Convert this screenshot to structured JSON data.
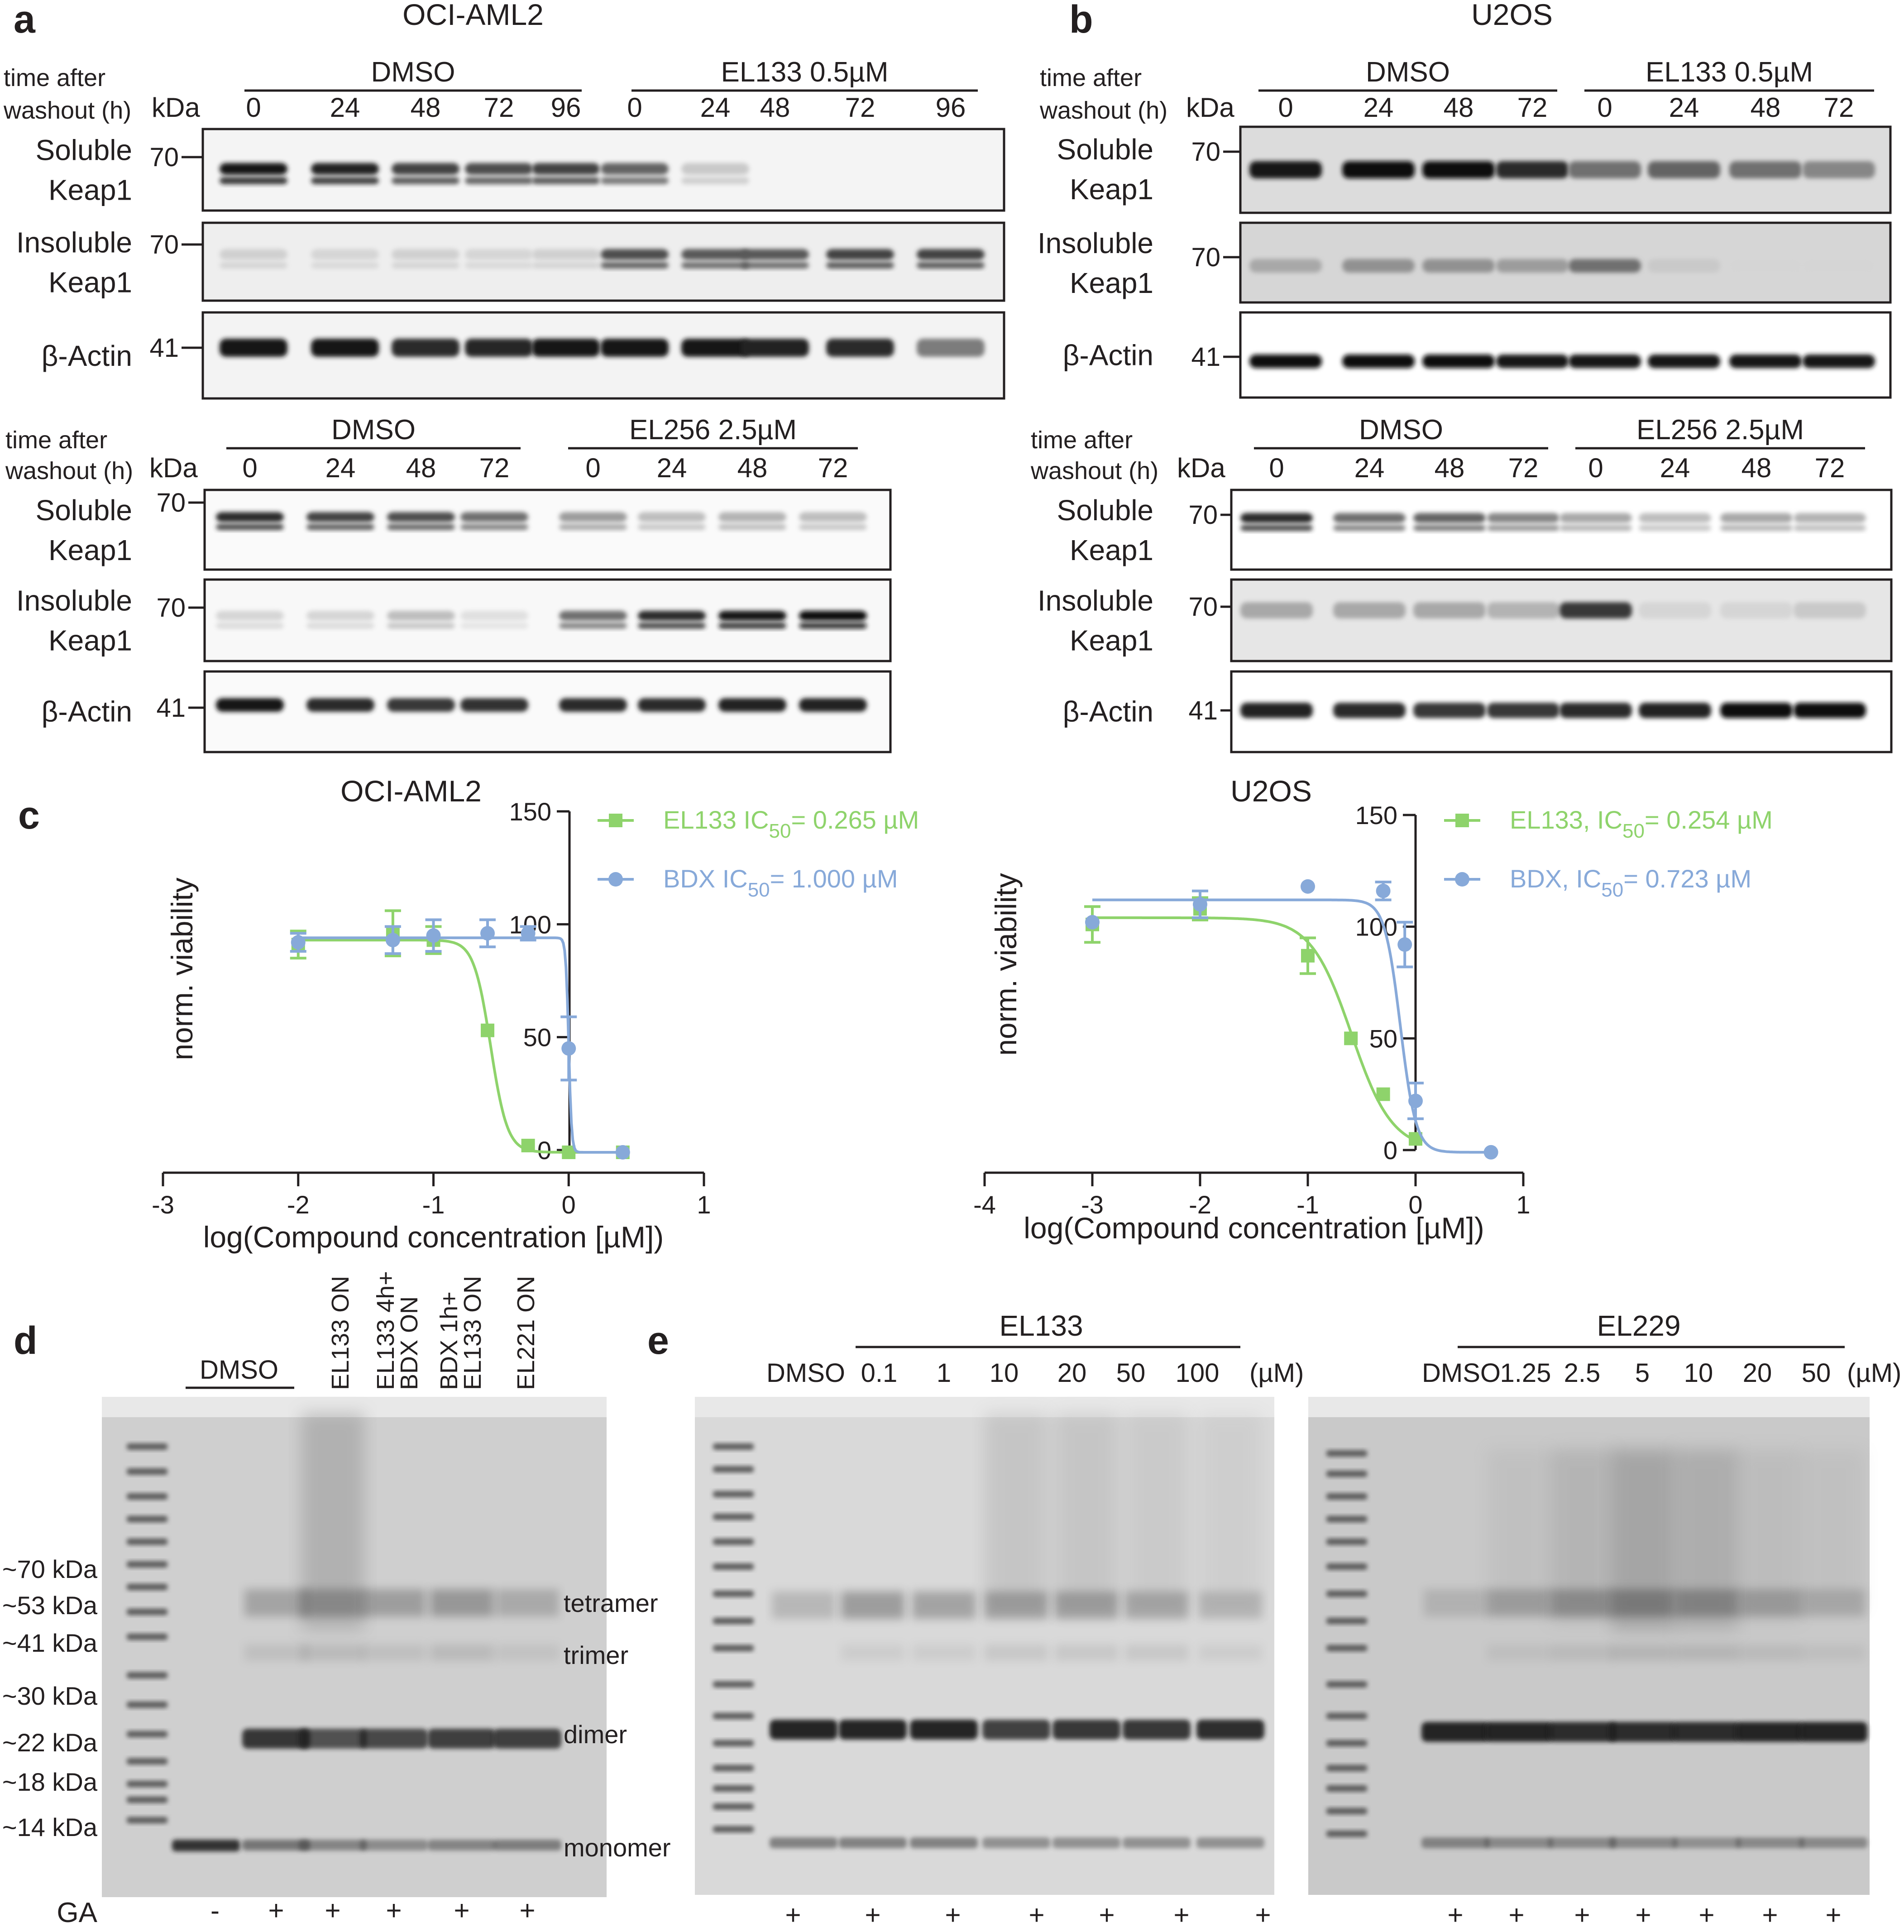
{
  "panels": {
    "a": {
      "letter": "a",
      "title": "OCI-AML2",
      "time_label_1": "time after",
      "time_label_2": "washout (h)",
      "kda": "kDa",
      "top": {
        "group1": "DMSO",
        "group2": "EL133 0.5µM",
        "lanes": [
          "0",
          "24",
          "48",
          "72",
          "96",
          "0",
          "24",
          "48",
          "72",
          "96"
        ]
      },
      "bottom": {
        "group1": "DMSO",
        "group2": "EL256 2.5µM",
        "lanes": [
          "0",
          "24",
          "48",
          "72",
          "0",
          "24",
          "48",
          "72"
        ]
      },
      "rows": [
        {
          "label_1": "Soluble",
          "label_2": "Keap1",
          "kda": "70"
        },
        {
          "label_1": "Insoluble",
          "label_2": "Keap1",
          "kda": "70"
        },
        {
          "label_1": "β-Actin",
          "label_2": "",
          "kda": "41"
        }
      ]
    },
    "b": {
      "letter": "b",
      "title": "U2OS",
      "time_label_1": "time after",
      "time_label_2": "washout (h)",
      "kda": "kDa",
      "top": {
        "group1": "DMSO",
        "group2": "EL133 0.5µM",
        "lanes": [
          "0",
          "24",
          "48",
          "72",
          "0",
          "24",
          "48",
          "72"
        ]
      },
      "bottom": {
        "group1": "DMSO",
        "group2": "EL256 2.5µM",
        "lanes": [
          "0",
          "24",
          "48",
          "72",
          "0",
          "24",
          "48",
          "72"
        ]
      },
      "rows": [
        {
          "label_1": "Soluble",
          "label_2": "Keap1",
          "kda": "70"
        },
        {
          "label_1": "Insoluble",
          "label_2": "Keap1",
          "kda": "70"
        },
        {
          "label_1": "β-Actin",
          "label_2": "",
          "kda": "41"
        }
      ]
    },
    "c": {
      "letter": "c"
    },
    "d": {
      "letter": "d",
      "ladder": [
        "~70 kDa",
        "~53 kDa",
        "~41 kDa",
        "~30 kDa",
        "~22 kDa",
        "~18 kDa",
        "~14 kDa"
      ],
      "bands": [
        "tetramer",
        "trimer",
        "dimer",
        "monomer"
      ],
      "dmso": "DMSO",
      "lanes": [
        "EL133 ON",
        "EL133 4h+",
        "BDX ON",
        "BDX 1h+",
        "EL133 ON",
        "EL221 ON"
      ],
      "ga_label": "GA",
      "ga": [
        "-",
        "+",
        "+",
        "+",
        "+",
        "+"
      ]
    },
    "e": {
      "letter": "e",
      "gel1": {
        "compound": "EL133",
        "lanes": [
          "DMSO",
          "0.1",
          "1",
          "10",
          "20",
          "50",
          "100"
        ],
        "unit": "(µM)",
        "ga": [
          "+",
          "+",
          "+",
          "+",
          "+",
          "+",
          "+"
        ]
      },
      "gel2": {
        "compound": "EL229",
        "lanes": [
          "DMSO",
          "1.25",
          "2.5",
          "5",
          "10",
          "20",
          "50"
        ],
        "unit": "(µM)",
        "ga": [
          "+",
          "+",
          "+",
          "+",
          "+",
          "+",
          "+"
        ]
      }
    }
  },
  "chart_data": [
    {
      "type": "line",
      "title": "OCI-AML2",
      "xlabel": "log(Compound concentration [µM])",
      "ylabel": "norm. viability",
      "xlim": [
        -3,
        1
      ],
      "ylim": [
        0,
        150
      ],
      "xticks": [
        "-3",
        "-2",
        "-1",
        "0",
        "1"
      ],
      "yticks": [
        "0",
        "50",
        "100",
        "150"
      ],
      "series": [
        {
          "name": "EL133",
          "ic50_label": "EL133 IC",
          "ic50_sub": "50",
          "ic50_value": "= 0.265 µM",
          "color": "#8ed36b",
          "marker": "square",
          "x": [
            -2,
            -1.3,
            -1,
            -0.6,
            -0.3,
            0,
            0.4
          ],
          "y": [
            91,
            96,
            93,
            53,
            2,
            -1,
            -1
          ],
          "err": [
            6,
            10,
            6,
            0,
            0,
            0,
            0
          ],
          "top": 93,
          "bottom": -1,
          "logic50": -0.577,
          "hill": 7
        },
        {
          "name": "BDX",
          "ic50_label": "BDX IC",
          "ic50_sub": "50",
          "ic50_value": "= 1.000 µM",
          "color": "#87a9d9",
          "marker": "circle",
          "x": [
            -2,
            -1.3,
            -1,
            -0.6,
            -0.3,
            0,
            0.4
          ],
          "y": [
            92,
            93,
            95,
            96,
            96,
            45,
            -1
          ],
          "err": [
            4,
            6,
            7,
            6,
            3,
            14,
            0
          ],
          "top": 94,
          "bottom": -1,
          "logic50": 0.0,
          "hill": 40
        }
      ]
    },
    {
      "type": "line",
      "title": "U2OS",
      "xlabel": "log(Compound concentration [µM])",
      "ylabel": "norm. viability",
      "xlim": [
        -4,
        1
      ],
      "ylim": [
        0,
        150
      ],
      "xticks": [
        "-4",
        "-3",
        "-2",
        "-1",
        "0",
        "1"
      ],
      "yticks": [
        "0",
        "50",
        "100",
        "150"
      ],
      "series": [
        {
          "name": "EL133",
          "ic50_label": "EL133, IC",
          "ic50_sub": "50",
          "ic50_value": "= 0.254 µM",
          "color": "#8ed36b",
          "marker": "square",
          "x": [
            -3,
            -2,
            -1,
            -0.6,
            -0.3,
            0
          ],
          "y": [
            101,
            108,
            87,
            50,
            25,
            5
          ],
          "err": [
            8,
            5,
            8,
            0,
            0,
            0
          ],
          "top": 104,
          "bottom": 0,
          "logic50": -0.595,
          "hill": 2.3
        },
        {
          "name": "BDX",
          "ic50_label": "BDX, IC",
          "ic50_sub": "50",
          "ic50_value": "= 0.723 µM",
          "color": "#87a9d9",
          "marker": "circle",
          "x": [
            -3,
            -2,
            -1,
            -0.3,
            -0.1,
            0,
            0.7
          ],
          "y": [
            102,
            110,
            118,
            116,
            92,
            22,
            -1
          ],
          "err": [
            0,
            6,
            0,
            4,
            10,
            8,
            0
          ],
          "top": 112,
          "bottom": -1,
          "logic50": -0.141,
          "hill": 6
        }
      ]
    }
  ]
}
